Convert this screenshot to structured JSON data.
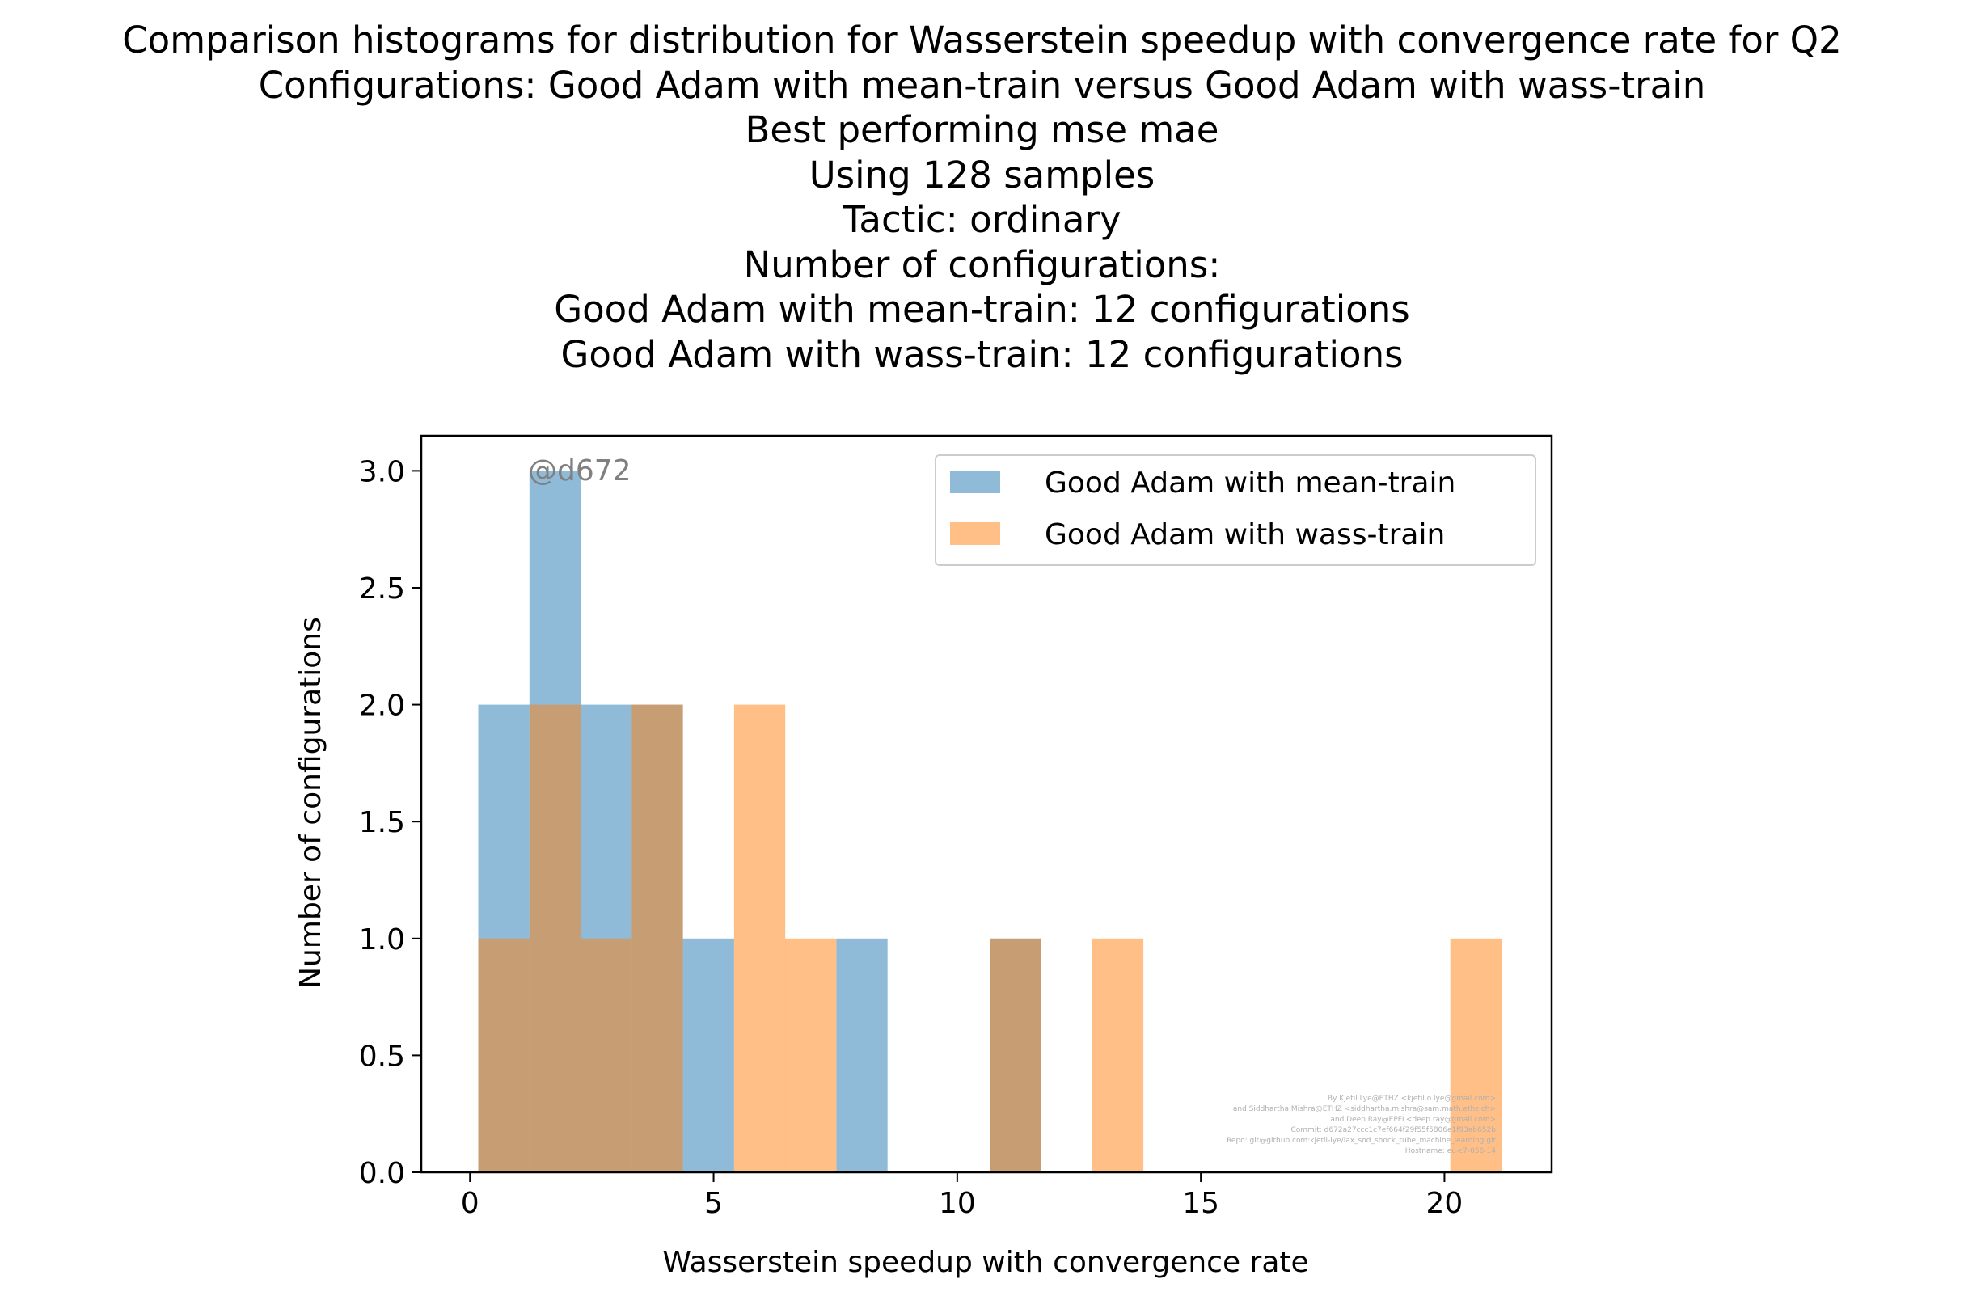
{
  "title_lines": [
    "Comparison histograms for distribution for Wasserstein speedup with convergence rate for Q2",
    "Configurations: Good Adam with mean-train versus Good Adam with wass-train",
    "Best performing mse mae",
    "Using 128 samples",
    "Tactic: ordinary",
    "Number of configurations:",
    "Good Adam with mean-train: 12 configurations",
    "Good Adam with wass-train: 12 configurations"
  ],
  "watermark": "@d672",
  "credits": [
    "By Kjetil Lye@ETHZ <kjetil.o.lye@gmail.com>",
    "and Siddhartha Mishra@ETHZ <siddhartha.mishra@sam.math.ethz.ch>",
    "and Deep Ray@EPFL<deep.ray@gmail.com>",
    "Commit: d672a27ccc1c7ef664f29f55f5806e1f93ab652b",
    "Repo: git@github.com:kjetil-lye/lax_sod_shock_tube_machine_learning.git",
    "Hostname: eu-c7-056-14"
  ],
  "chart_data": {
    "type": "bar",
    "title": "Comparison histograms for distribution for Wasserstein speedup with convergence rate for Q2",
    "xlabel": "Wasserstein speedup with convergence rate",
    "ylabel": "Number of configurations",
    "xlim": [
      -1.0,
      22.2
    ],
    "ylim": [
      0,
      3.15
    ],
    "x_ticks": [
      0,
      5,
      10,
      15,
      20
    ],
    "x_tick_labels": [
      "0",
      "5",
      "10",
      "15",
      "20"
    ],
    "y_ticks": [
      0.0,
      0.5,
      1.0,
      1.5,
      2.0,
      2.5,
      3.0
    ],
    "y_tick_labels": [
      "0.0",
      "0.5",
      "1.0",
      "1.5",
      "2.0",
      "2.5",
      "3.0"
    ],
    "grid": false,
    "legend_position": "upper right",
    "colors": {
      "series1": "#1f77b4",
      "series2": "#ff7f0e",
      "bar_alpha": 0.5
    },
    "series": [
      {
        "name": "Good Adam with mean-train",
        "bins": [
          {
            "x0": 0.17,
            "x1": 1.22,
            "count": 2
          },
          {
            "x0": 1.22,
            "x1": 2.27,
            "count": 3
          },
          {
            "x0": 2.27,
            "x1": 3.32,
            "count": 2
          },
          {
            "x0": 3.32,
            "x1": 4.37,
            "count": 2
          },
          {
            "x0": 4.37,
            "x1": 5.42,
            "count": 1
          },
          {
            "x0": 7.52,
            "x1": 8.57,
            "count": 1
          },
          {
            "x0": 10.67,
            "x1": 11.72,
            "count": 1
          }
        ]
      },
      {
        "name": "Good Adam with wass-train",
        "bins": [
          {
            "x0": 0.17,
            "x1": 1.22,
            "count": 1
          },
          {
            "x0": 1.22,
            "x1": 2.27,
            "count": 2
          },
          {
            "x0": 2.27,
            "x1": 3.32,
            "count": 1
          },
          {
            "x0": 3.32,
            "x1": 4.37,
            "count": 2
          },
          {
            "x0": 5.42,
            "x1": 6.47,
            "count": 2
          },
          {
            "x0": 6.47,
            "x1": 7.52,
            "count": 1
          },
          {
            "x0": 10.67,
            "x1": 11.72,
            "count": 1
          },
          {
            "x0": 12.77,
            "x1": 13.82,
            "count": 1
          },
          {
            "x0": 20.12,
            "x1": 21.17,
            "count": 1
          }
        ]
      }
    ]
  }
}
